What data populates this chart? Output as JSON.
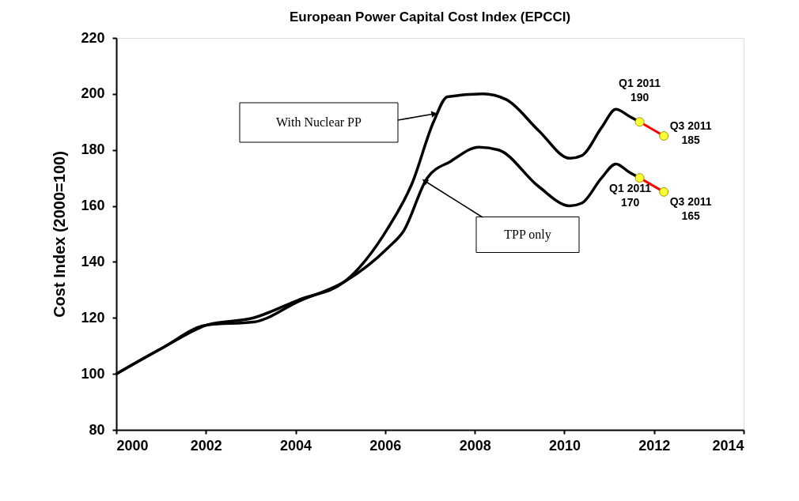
{
  "chart_data": {
    "type": "line",
    "title": "European Power Capital Cost Index (EPCCI)",
    "ylabel": "Cost Index (2000=100)",
    "xlim": [
      2000,
      2014
    ],
    "xticks": [
      2000,
      2002,
      2004,
      2006,
      2008,
      2010,
      2012,
      2014
    ],
    "ylim": [
      80,
      220
    ],
    "yticks": [
      80,
      100,
      120,
      140,
      160,
      180,
      200,
      220
    ],
    "grid": false,
    "series": [
      {
        "color": "#000000",
        "marker": "none",
        "x": [
          2000,
          2001,
          2002.03,
          2003.06,
          2004.08,
          2005.1,
          2006.06,
          2006.6,
          2007.08,
          2007.39,
          2008.18,
          2008.7,
          2009.42,
          2010.12,
          2010.39,
          2010.83,
          2011.15,
          2011.45,
          2011.68
        ],
        "values": [
          100,
          109,
          117.5,
          120,
          126.5,
          133,
          152,
          168,
          190,
          199,
          200,
          198,
          187,
          177,
          178,
          188,
          194.5,
          192,
          190
        ]
      },
      {
        "color": "#000000",
        "marker": "none",
        "x": [
          2000,
          2001,
          2002.03,
          2003.06,
          2004.08,
          2005.1,
          2006.06,
          2006.41,
          2006.94,
          2007.47,
          2008.09,
          2008.53,
          2009.42,
          2010.12,
          2010.39,
          2010.83,
          2011.15,
          2011.45,
          2011.68
        ],
        "values": [
          100,
          109,
          117.5,
          118.5,
          126,
          133,
          145,
          151,
          170,
          176,
          181,
          180,
          167,
          160,
          161,
          170,
          175,
          172,
          170
        ]
      },
      {
        "color": "#ff0000",
        "marker": "circle",
        "x": [
          2011.68,
          2012.22
        ],
        "values": [
          190,
          185
        ],
        "value_labels": [
          "Q1 2011\n190",
          "Q3 2011\n185"
        ]
      },
      {
        "color": "#ff0000",
        "marker": "circle",
        "x": [
          2011.68,
          2012.22
        ],
        "values": [
          170,
          165
        ],
        "value_labels": [
          "Q1 2011\n170",
          "Q3 2011\n165"
        ]
      }
    ],
    "annotations": [
      "With Nuclear PP",
      "TPP only"
    ]
  }
}
